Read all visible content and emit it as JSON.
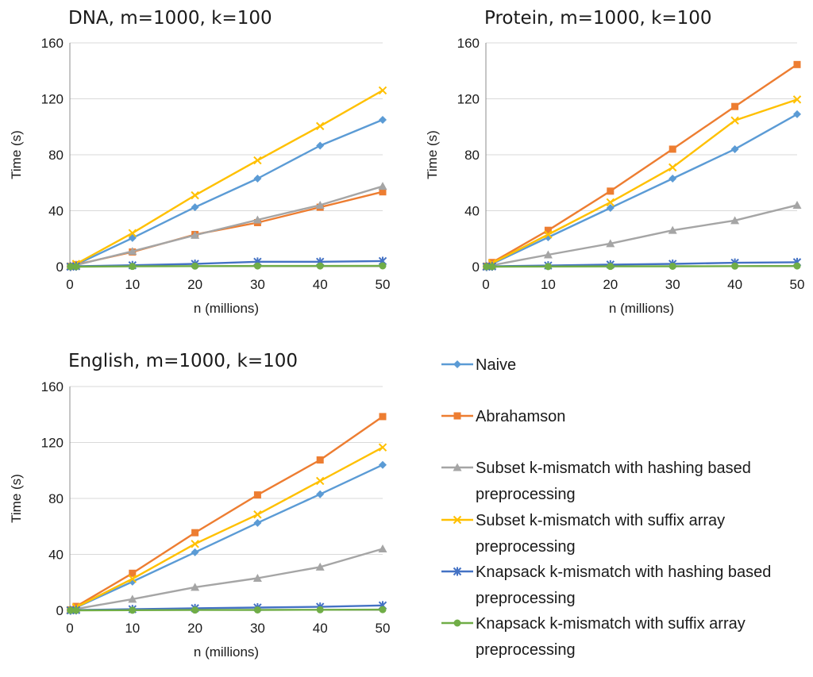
{
  "series_styles": [
    {
      "name": "Naive",
      "color": "#5b9bd5",
      "marker": "diamond"
    },
    {
      "name": "Abrahamson",
      "color": "#ed7d31",
      "marker": "square"
    },
    {
      "name": "Subset k-mismatch with hashing based preprocessing",
      "color": "#a5a5a5",
      "marker": "triangle"
    },
    {
      "name": "Subset k-mismatch with suffix array preprocessing",
      "color": "#ffc000",
      "marker": "x"
    },
    {
      "name": "Knapsack k-mismatch with hashing based preprocessing",
      "color": "#4472c4",
      "marker": "star"
    },
    {
      "name": "Knapsack k-mismatch with suffix array preprocessing",
      "color": "#70ad47",
      "marker": "circle"
    }
  ],
  "legend": {
    "entries": [
      [
        "Naive"
      ],
      [
        "Abrahamson"
      ],
      [
        "Subset k-mismatch with hashing based",
        "preprocessing"
      ],
      [
        "Subset k-mismatch with suffix array",
        "preprocessing"
      ],
      [
        "Knapsack k-mismatch with hashing based",
        "preprocessing"
      ],
      [
        "Knapsack k-mismatch with suffix array",
        "preprocessing"
      ]
    ]
  },
  "chart_data": [
    {
      "type": "line",
      "title": "DNA, m=1000, k=100",
      "xlabel": "n (millions)",
      "ylabel": "Time (s)",
      "xlim": [
        0,
        50
      ],
      "ylim": [
        0,
        160
      ],
      "xticks": [
        0,
        10,
        20,
        30,
        40,
        50
      ],
      "yticks": [
        0,
        40,
        80,
        120,
        160
      ],
      "grid": true,
      "x": [
        0.1,
        1,
        10,
        20,
        30,
        40,
        50
      ],
      "series": [
        {
          "name": "Naive",
          "values": [
            0.2,
            1.5,
            20.5,
            42.5,
            63,
            86.5,
            105
          ]
        },
        {
          "name": "Abrahamson",
          "values": [
            0.2,
            1.5,
            10.5,
            23,
            31.5,
            42.5,
            53.5
          ]
        },
        {
          "name": "Subset k-mismatch with hashing based preprocessing",
          "values": [
            0.2,
            1.2,
            11,
            22.5,
            33.5,
            44,
            57.5
          ]
        },
        {
          "name": "Subset k-mismatch with suffix array preprocessing",
          "values": [
            0.2,
            2,
            24,
            51,
            76,
            100.5,
            126
          ]
        },
        {
          "name": "Knapsack k-mismatch with hashing based preprocessing",
          "values": [
            0,
            0.3,
            1,
            2,
            3.5,
            3.5,
            4
          ]
        },
        {
          "name": "Knapsack k-mismatch with suffix array preprocessing",
          "values": [
            0,
            0,
            0.2,
            0.4,
            0.5,
            0.5,
            0.6
          ]
        }
      ]
    },
    {
      "type": "line",
      "title": "Protein, m=1000, k=100",
      "xlabel": "n (millions)",
      "ylabel": "Time (s)",
      "xlim": [
        0,
        50
      ],
      "ylim": [
        0,
        160
      ],
      "xticks": [
        0,
        10,
        20,
        30,
        40,
        50
      ],
      "yticks": [
        0,
        40,
        80,
        120,
        160
      ],
      "grid": true,
      "x": [
        0.1,
        1,
        10,
        20,
        30,
        40,
        50
      ],
      "series": [
        {
          "name": "Naive",
          "values": [
            0.2,
            2,
            21,
            42,
            63,
            84,
            109
          ]
        },
        {
          "name": "Abrahamson",
          "values": [
            0.3,
            3,
            26,
            54,
            84,
            114.5,
            144.5
          ]
        },
        {
          "name": "Subset k-mismatch with hashing based preprocessing",
          "values": [
            0.1,
            1,
            8.5,
            16.5,
            26,
            33,
            44
          ]
        },
        {
          "name": "Subset k-mismatch with suffix array preprocessing",
          "values": [
            0.2,
            2.5,
            23,
            46,
            71,
            104.5,
            119.5
          ]
        },
        {
          "name": "Knapsack k-mismatch with hashing based preprocessing",
          "values": [
            0,
            0.2,
            0.8,
            1.5,
            2,
            2.8,
            3.2
          ]
        },
        {
          "name": "Knapsack k-mismatch with suffix array preprocessing",
          "values": [
            0,
            0,
            0.1,
            0.2,
            0.3,
            0.4,
            0.5
          ]
        }
      ]
    },
    {
      "type": "line",
      "title": "English, m=1000, k=100",
      "xlabel": "n (millions)",
      "ylabel": "Time (s)",
      "xlim": [
        0,
        50
      ],
      "ylim": [
        0,
        160
      ],
      "xticks": [
        0,
        10,
        20,
        30,
        40,
        50
      ],
      "yticks": [
        0,
        40,
        80,
        120,
        160
      ],
      "grid": true,
      "x": [
        0.1,
        1,
        10,
        20,
        30,
        40,
        50
      ],
      "series": [
        {
          "name": "Naive",
          "values": [
            0.2,
            2,
            20.5,
            41.5,
            62.5,
            83,
            104
          ]
        },
        {
          "name": "Abrahamson",
          "values": [
            0.3,
            2.8,
            26.5,
            55.5,
            82.5,
            107.5,
            138.5
          ]
        },
        {
          "name": "Subset k-mismatch with hashing based preprocessing",
          "values": [
            0.1,
            1,
            8,
            16.5,
            23,
            31,
            44
          ]
        },
        {
          "name": "Subset k-mismatch with suffix array preprocessing",
          "values": [
            0.2,
            2.2,
            22.5,
            47.5,
            68.5,
            92.5,
            116.5
          ]
        },
        {
          "name": "Knapsack k-mismatch with hashing based preprocessing",
          "values": [
            0,
            0.2,
            0.8,
            1.5,
            2,
            2.5,
            3.5
          ]
        },
        {
          "name": "Knapsack k-mismatch with suffix array preprocessing",
          "values": [
            0,
            0,
            0.1,
            0.2,
            0.3,
            0.4,
            0.5
          ]
        }
      ]
    }
  ]
}
